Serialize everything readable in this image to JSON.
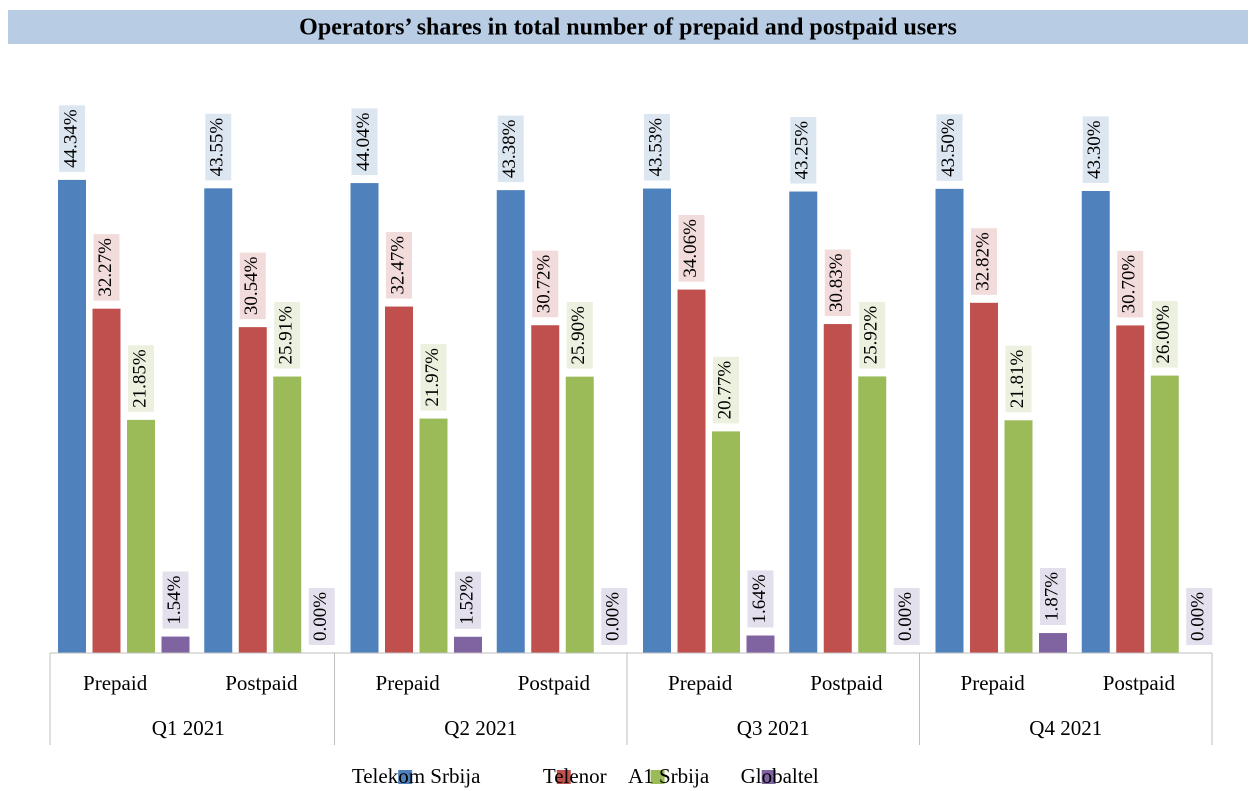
{
  "chart_data": {
    "type": "bar",
    "title": "Operators’ shares in total number of prepaid and postpaid users",
    "categories": [
      "Prepaid",
      "Postpaid",
      "Prepaid",
      "Postpaid",
      "Prepaid",
      "Postpaid",
      "Prepaid",
      "Postpaid"
    ],
    "groups": [
      "Q1 2021",
      "Q2 2021",
      "Q3 2021",
      "Q4 2021"
    ],
    "series": [
      {
        "name": "Telekom Srbija",
        "color": "#4f81bd",
        "label_background": "#dce6f1",
        "values": [
          44.34,
          43.55,
          44.04,
          43.38,
          43.53,
          43.25,
          43.5,
          43.3
        ],
        "value_labels": [
          "44.34%",
          "43.55%",
          "44.04%",
          "43.38%",
          "43.53%",
          "43.25%",
          "43.50%",
          "43.30%"
        ]
      },
      {
        "name": "Telenor",
        "color": "#c0504d",
        "label_background": "#f2dcdb",
        "values": [
          32.27,
          30.54,
          32.47,
          30.72,
          34.06,
          30.83,
          32.82,
          30.7
        ],
        "value_labels": [
          "32.27%",
          "30.54%",
          "32.47%",
          "30.72%",
          "34.06%",
          "30.83%",
          "32.82%",
          "30.70%"
        ]
      },
      {
        "name": "A1 Srbija",
        "color": "#9bbb59",
        "label_background": "#ebf1de",
        "values": [
          21.85,
          25.91,
          21.97,
          25.9,
          20.77,
          25.92,
          21.81,
          26.0
        ],
        "value_labels": [
          "21.85%",
          "25.91%",
          "21.97%",
          "25.90%",
          "20.77%",
          "25.92%",
          "21.81%",
          "26.00%"
        ]
      },
      {
        "name": "Globaltel",
        "color": "#8064a2",
        "label_background": "#e4dfec",
        "values": [
          1.54,
          0.0,
          1.52,
          0.0,
          1.64,
          0.0,
          1.87,
          0.0
        ],
        "value_labels": [
          "1.54%",
          "0.00%",
          "1.52%",
          "0.00%",
          "1.64%",
          "0.00%",
          "1.87%",
          "0.00%"
        ]
      }
    ]
  }
}
